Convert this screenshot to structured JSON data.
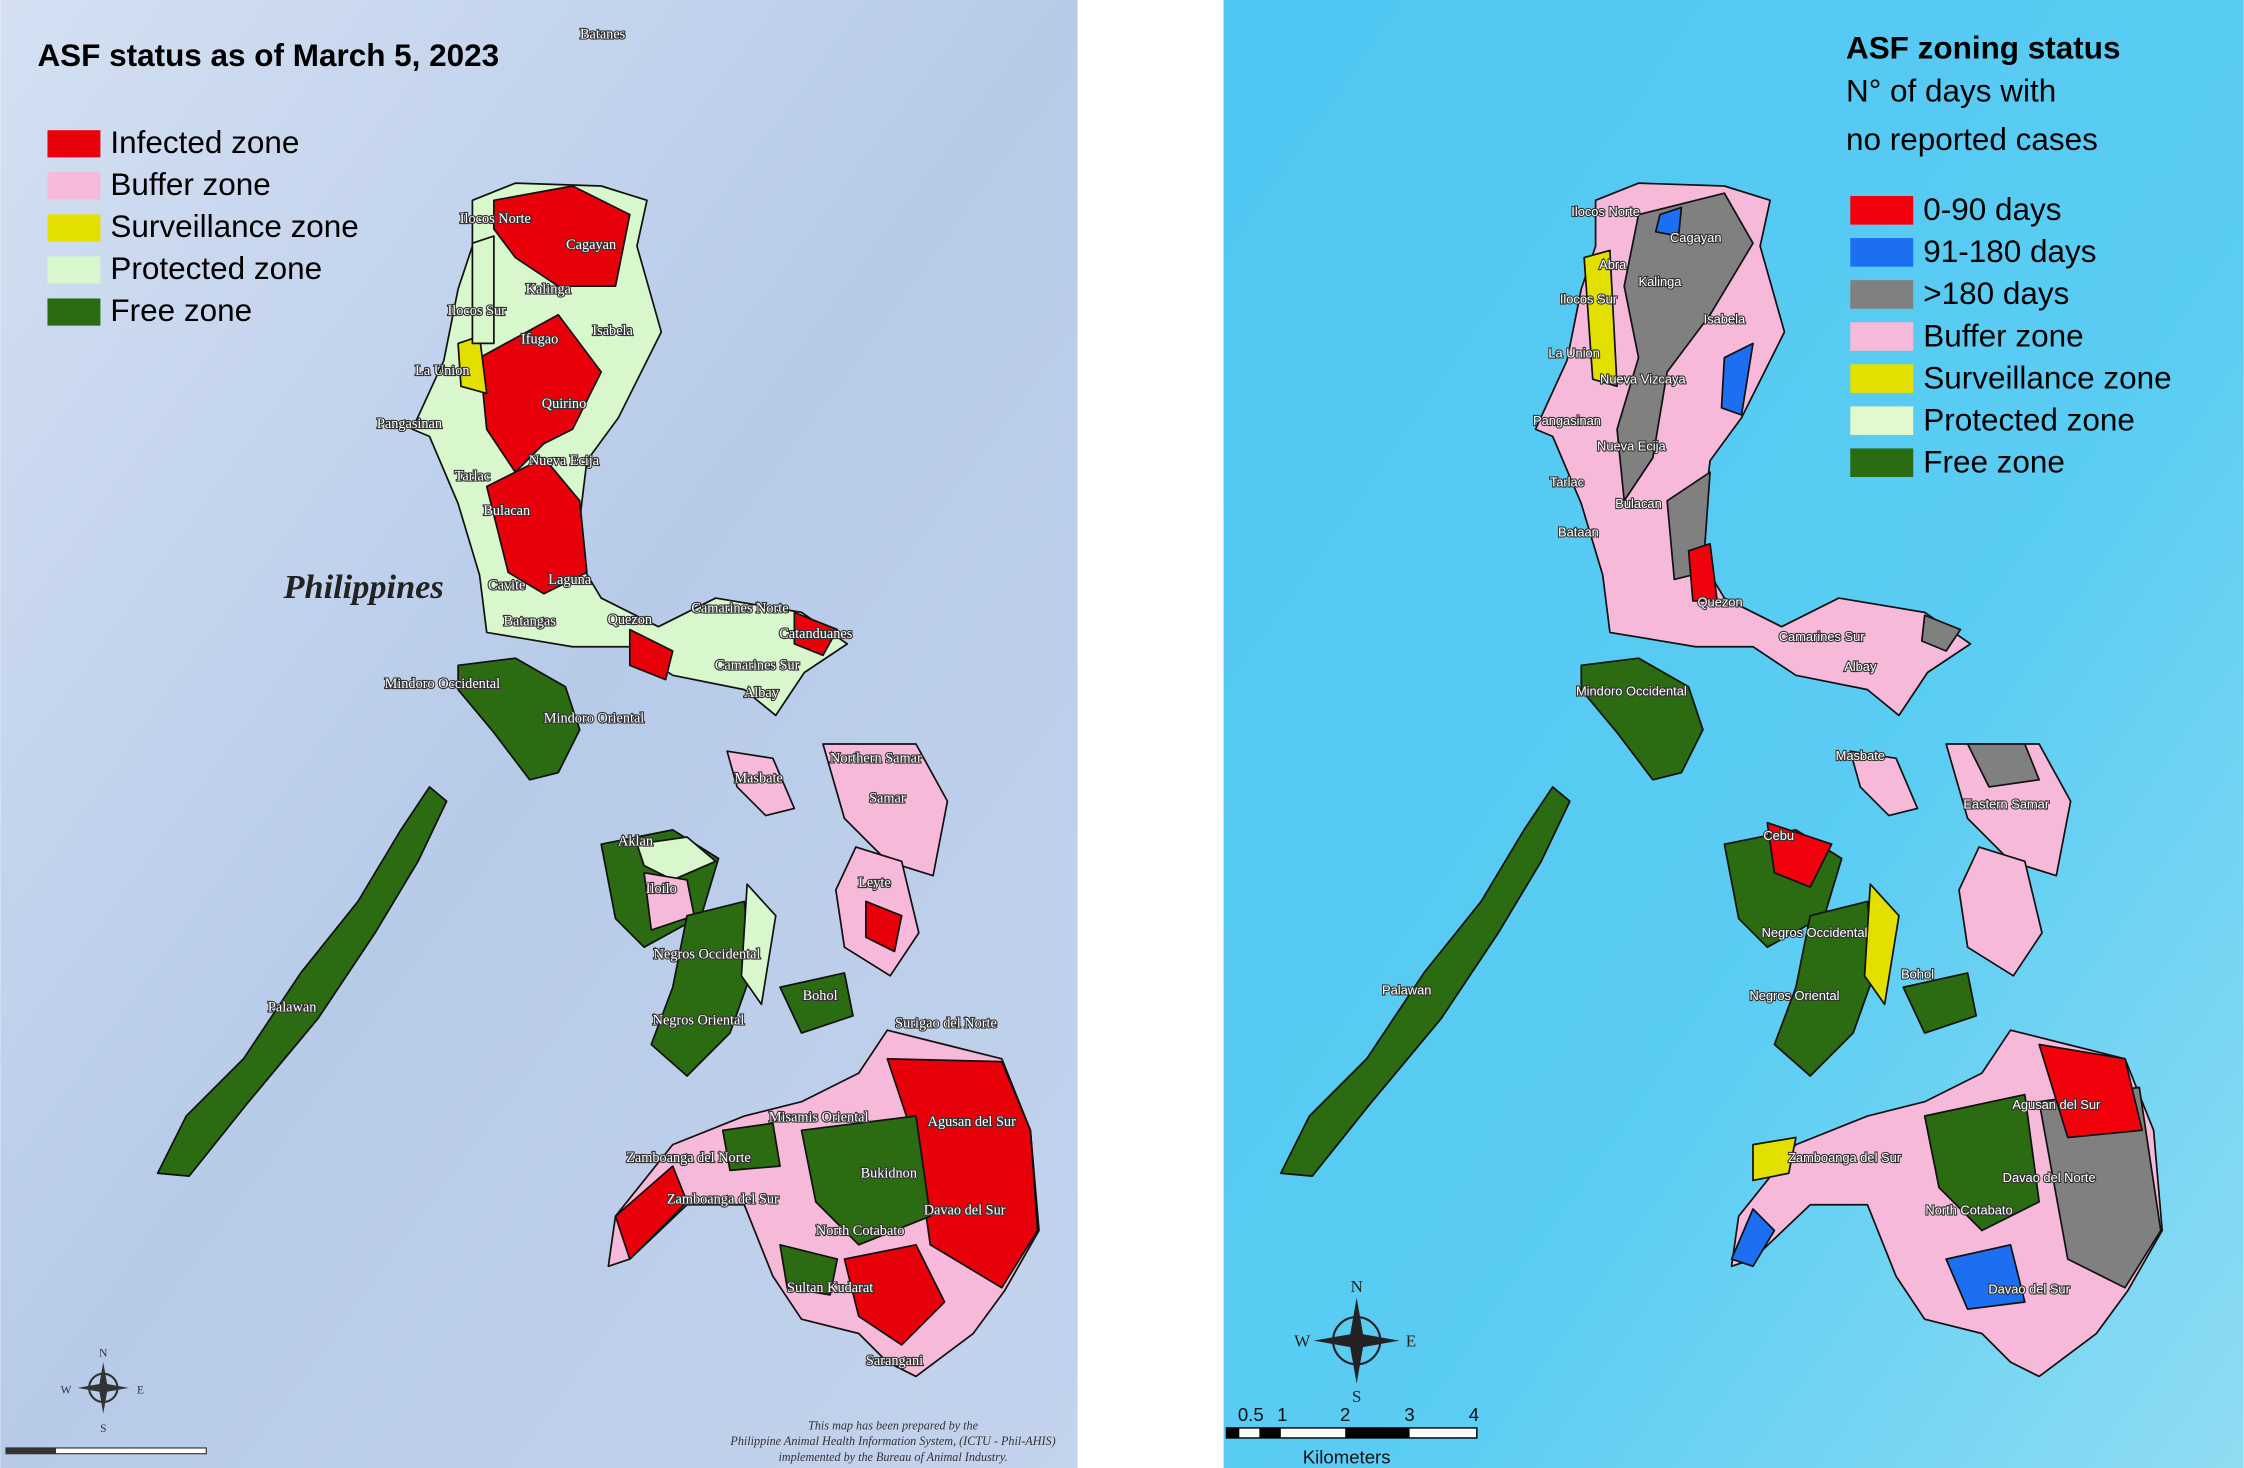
{
  "left_map": {
    "title": "ASF status as of March 5, 2023",
    "legend": [
      {
        "label": "Infected zone",
        "color": "#e8000a"
      },
      {
        "label": "Buffer zone",
        "color": "#f7b9d9"
      },
      {
        "label": "Surveillance zone",
        "color": "#e3df00"
      },
      {
        "label": "Protected zone",
        "color": "#d9f7cc"
      },
      {
        "label": "Free zone",
        "color": "#2b6b11"
      }
    ],
    "country_label": "Philippines",
    "place_labels": [
      "Batanes",
      "Ilocos Norte",
      "Cagayan",
      "Kalinga",
      "Ilocos Sur",
      "Isabela",
      "Ifugao",
      "La Union",
      "Quirino",
      "Pangasinan",
      "Nueva Ecija",
      "Tarlac",
      "Bulacan",
      "Cavite",
      "Laguna",
      "Batangas",
      "Quezon",
      "Camarines Norte",
      "Catanduanes",
      "Camarines Sur",
      "Albay",
      "Mindoro Occidental",
      "Mindoro Oriental",
      "Northern Samar",
      "Samar",
      "Masbate",
      "Aklan",
      "Iloilo",
      "Leyte",
      "Negros Occidental",
      "Bohol",
      "Negros Oriental",
      "Palawan",
      "Surigao del Norte",
      "Misamis Oriental",
      "Agusan del Sur",
      "Zamboanga del Norte",
      "Zamboanga del Sur",
      "Bukidnon",
      "Davao del Sur",
      "North Cotabato",
      "Sultan Kudarat",
      "Sarangani"
    ],
    "compass": [
      "N",
      "E",
      "S",
      "W"
    ],
    "credit": [
      "This map has been prepared by the",
      "Philippine Animal Health Information System, (ICTU - Phil-AHIS)",
      "implemented by the Bureau of Animal Industry."
    ]
  },
  "right_map": {
    "title": "ASF zoning status",
    "subtitle": [
      "N° of days with",
      "no reported cases"
    ],
    "legend": [
      {
        "label": "0-90 days",
        "color": "#f2000c"
      },
      {
        "label": "91-180 days",
        "color": "#1b6ff0"
      },
      {
        "label": ">180 days",
        "color": "#808080"
      },
      {
        "label": "Buffer zone",
        "color": "#f7b9d9"
      },
      {
        "label": "Surveillance zone",
        "color": "#e3df00"
      },
      {
        "label": "Protected zone",
        "color": "#e2f8cf"
      },
      {
        "label": "Free zone",
        "color": "#2b6b11"
      }
    ],
    "place_labels": [
      "Ilocos Norte",
      "Cagayan",
      "Abra",
      "Kalinga",
      "Ilocos Sur",
      "Isabela",
      "La Union",
      "Nueva Vizcaya",
      "Pangasinan",
      "Nueva Ecija",
      "Tarlac",
      "Bulacan",
      "Bataan",
      "Quezon",
      "Camarines Sur",
      "Albay",
      "Mindoro Occidental",
      "Masbate",
      "Eastern Samar",
      "Cebu",
      "Negros Occidental",
      "Bohol",
      "Negros Oriental",
      "Palawan",
      "Agusan del Sur",
      "Zamboanga del Sur",
      "Davao del Norte",
      "North Cotabato",
      "Davao del Sur"
    ],
    "compass": [
      "N",
      "E",
      "S",
      "W"
    ],
    "scale_labels": [
      "0.5",
      "1",
      "2",
      "3",
      "4"
    ],
    "scale_unit": "Kilometers"
  }
}
